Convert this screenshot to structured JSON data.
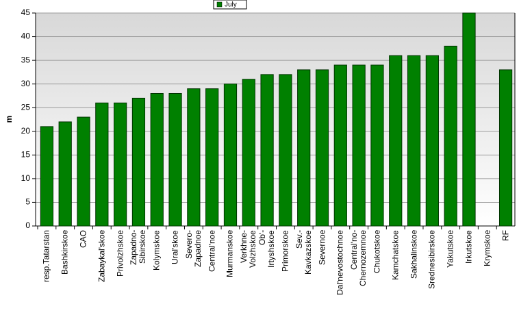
{
  "chart_data": {
    "type": "bar",
    "legend": "July",
    "y_label": "m",
    "categories": [
      "resp.Tatarstan",
      "Bashkirskoe",
      "CAO",
      "Zabaykal'skoe",
      "Privolzhskoe",
      "Zapadno-\nSibirskoe",
      "Kolymskoe",
      "Ural'skoe",
      "Severo-\nZapadnoe",
      "Central'noe",
      "Murmanskoe",
      "Verkhne-\nVolzhskoe",
      "Ob'-\nIrtyshskoe",
      "Primorskoe",
      "Sev.-\nKavkazskoe",
      "Severnoe",
      "Dal'nevostochnoe",
      "Central'no-\nChernozemnoe",
      "Chukotskoe",
      "Kamchatskoe",
      "Sakhalinskoe",
      "Srednesibirskoe",
      "Yakutskoe",
      "Irkutskoe",
      "Krymskoe",
      "RF"
    ],
    "values": [
      21,
      22,
      23,
      26,
      26,
      27,
      28,
      28,
      29,
      29,
      30,
      31,
      32,
      32,
      33,
      33,
      34,
      34,
      34,
      36,
      36,
      36,
      38,
      45,
      null,
      33
    ],
    "color": "#008000",
    "ylim": [
      0,
      45
    ],
    "yticks": [
      0,
      5,
      10,
      15,
      20,
      25,
      30,
      35,
      40,
      45
    ],
    "grid": true
  }
}
